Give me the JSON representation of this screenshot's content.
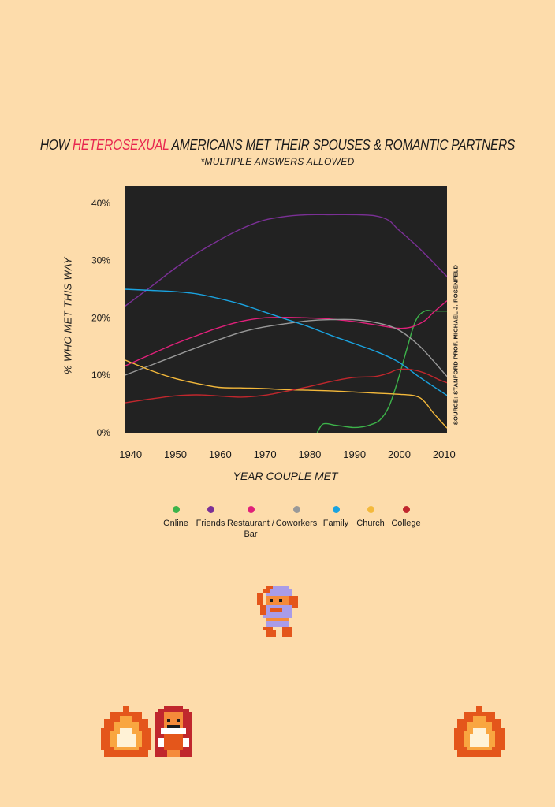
{
  "title": {
    "prefix": "HOW ",
    "highlight": "HETEROSEXUAL",
    "suffix": " AMERICANS MET THEIR SPOUSES & ROMANTIC PARTNERS",
    "subtitle": "*MULTIPLE ANSWERS ALLOWED"
  },
  "chart_data": {
    "type": "line",
    "title": "HOW HETEROSEXUAL AMERICANS MET THEIR SPOUSES & ROMANTIC PARTNERS",
    "xlabel": "YEAR COUPLE MET",
    "ylabel": "%  WHO MET THIS WAY",
    "xlim": [
      1939,
      2011
    ],
    "ylim": [
      0,
      43
    ],
    "xticks": [
      "1940",
      "1950",
      "1960",
      "1970",
      "1980",
      "1990",
      "2000",
      "2010"
    ],
    "xtick_values": [
      1940,
      1950,
      1960,
      1970,
      1980,
      1990,
      2000,
      2010
    ],
    "yticks": [
      "0%",
      "10%",
      "20%",
      "30%",
      "40%"
    ],
    "ytick_values": [
      0,
      10,
      20,
      30,
      40
    ],
    "source": "SOURCE:  STANFORD PROF. MICHAEL J. ROSENFELD",
    "series": [
      {
        "name": "Online",
        "color": "#3db34a",
        "points": [
          [
            1982,
            0
          ],
          [
            1983,
            1.3
          ],
          [
            1984,
            1.6
          ],
          [
            1986,
            1.3
          ],
          [
            1988,
            1.1
          ],
          [
            1990,
            0.9
          ],
          [
            1992,
            1.0
          ],
          [
            1994,
            1.4
          ],
          [
            1996,
            2.2
          ],
          [
            1998,
            4.5
          ],
          [
            2000,
            9
          ],
          [
            2002,
            14.5
          ],
          [
            2004,
            19.5
          ],
          [
            2006,
            21.2
          ],
          [
            2008,
            21.2
          ],
          [
            2011,
            21.2
          ]
        ]
      },
      {
        "name": "Friends",
        "color": "#7b3096",
        "points": [
          [
            1939,
            22
          ],
          [
            1945,
            25.5
          ],
          [
            1950,
            28.5
          ],
          [
            1955,
            31.2
          ],
          [
            1960,
            33.5
          ],
          [
            1965,
            35.5
          ],
          [
            1970,
            37
          ],
          [
            1975,
            37.7
          ],
          [
            1980,
            38
          ],
          [
            1985,
            38
          ],
          [
            1990,
            38
          ],
          [
            1995,
            37.8
          ],
          [
            1998,
            37
          ],
          [
            2000,
            35.5
          ],
          [
            2005,
            32
          ],
          [
            2011,
            27.2
          ]
        ]
      },
      {
        "name": "Restaurant / Bar",
        "color": "#e0207a",
        "points": [
          [
            1939,
            11.6
          ],
          [
            1945,
            13.7
          ],
          [
            1950,
            15.4
          ],
          [
            1955,
            16.9
          ],
          [
            1960,
            18.3
          ],
          [
            1965,
            19.4
          ],
          [
            1970,
            20
          ],
          [
            1975,
            20.1
          ],
          [
            1980,
            20
          ],
          [
            1985,
            19.8
          ],
          [
            1990,
            19.4
          ],
          [
            1995,
            18.8
          ],
          [
            2000,
            18.2
          ],
          [
            2003,
            18.4
          ],
          [
            2006,
            19.5
          ],
          [
            2008,
            21
          ],
          [
            2011,
            23
          ]
        ]
      },
      {
        "name": "Coworkers",
        "color": "#999999",
        "points": [
          [
            1939,
            10
          ],
          [
            1945,
            11.8
          ],
          [
            1950,
            13.3
          ],
          [
            1955,
            14.8
          ],
          [
            1960,
            16.2
          ],
          [
            1965,
            17.5
          ],
          [
            1970,
            18.4
          ],
          [
            1975,
            19
          ],
          [
            1980,
            19.5
          ],
          [
            1985,
            19.7
          ],
          [
            1990,
            19.7
          ],
          [
            1995,
            19.2
          ],
          [
            2000,
            18
          ],
          [
            2005,
            15
          ],
          [
            2011,
            9.8
          ]
        ]
      },
      {
        "name": "Family",
        "color": "#1aa3e0",
        "points": [
          [
            1939,
            25
          ],
          [
            1945,
            24.8
          ],
          [
            1950,
            24.6
          ],
          [
            1955,
            24.2
          ],
          [
            1960,
            23.4
          ],
          [
            1965,
            22.4
          ],
          [
            1970,
            21.1
          ],
          [
            1975,
            19.8
          ],
          [
            1980,
            18.5
          ],
          [
            1985,
            17
          ],
          [
            1990,
            15.6
          ],
          [
            1995,
            14.2
          ],
          [
            2000,
            12.4
          ],
          [
            2005,
            9.6
          ],
          [
            2011,
            6.5
          ]
        ]
      },
      {
        "name": "Church",
        "color": "#f4b93b",
        "points": [
          [
            1939,
            12.7
          ],
          [
            1945,
            10.8
          ],
          [
            1950,
            9.5
          ],
          [
            1955,
            8.6
          ],
          [
            1960,
            7.9
          ],
          [
            1965,
            7.8
          ],
          [
            1970,
            7.7
          ],
          [
            1975,
            7.5
          ],
          [
            1980,
            7.4
          ],
          [
            1985,
            7.3
          ],
          [
            1990,
            7.1
          ],
          [
            1995,
            6.9
          ],
          [
            2000,
            6.7
          ],
          [
            2004,
            6.4
          ],
          [
            2006,
            5.4
          ],
          [
            2008,
            3.4
          ],
          [
            2011,
            0.8
          ]
        ]
      },
      {
        "name": "College",
        "color": "#c0272d",
        "points": [
          [
            1939,
            5.2
          ],
          [
            1945,
            5.9
          ],
          [
            1950,
            6.4
          ],
          [
            1955,
            6.6
          ],
          [
            1960,
            6.4
          ],
          [
            1965,
            6.2
          ],
          [
            1970,
            6.5
          ],
          [
            1975,
            7.2
          ],
          [
            1980,
            8
          ],
          [
            1985,
            8.9
          ],
          [
            1990,
            9.6
          ],
          [
            1995,
            9.8
          ],
          [
            1998,
            10.4
          ],
          [
            2000,
            11
          ],
          [
            2003,
            11
          ],
          [
            2006,
            10.4
          ],
          [
            2009,
            9.3
          ],
          [
            2011,
            8.7
          ]
        ]
      }
    ]
  },
  "legend": [
    {
      "name": "Online",
      "color": "#3db34a"
    },
    {
      "name": "Friends",
      "color": "#7b3096"
    },
    {
      "name": "Restaurant / Bar",
      "color": "#e0207a"
    },
    {
      "name": "Coworkers",
      "color": "#999999"
    },
    {
      "name": "Family",
      "color": "#1aa3e0"
    },
    {
      "name": "Church",
      "color": "#f4b93b"
    },
    {
      "name": "College",
      "color": "#c0272d"
    }
  ],
  "colors": {
    "background": "#fddcab",
    "plot_background": "#222222",
    "highlight": "#e8264f"
  },
  "decorations": {
    "hero_icon": "pixel-hero-icon",
    "fire_icon": "pixel-fire-icon",
    "old_man_icon": "pixel-old-man-icon"
  }
}
